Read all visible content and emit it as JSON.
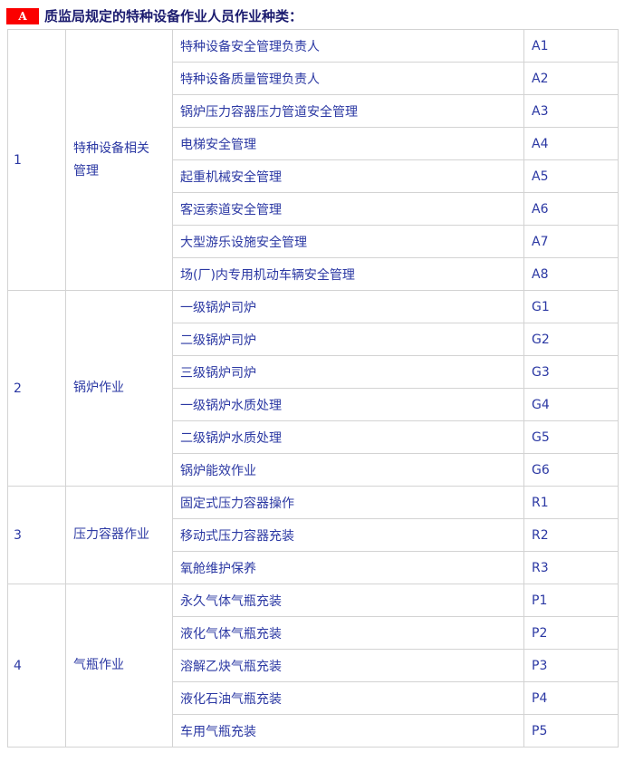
{
  "header": {
    "badge_label": "A",
    "title": "质监局规定的特种设备作业人员作业种类："
  },
  "table": {
    "sections": [
      {
        "num": "1",
        "category": "特种设备相关管理",
        "rows": [
          {
            "job": "特种设备安全管理负责人",
            "code": "A1"
          },
          {
            "job": "特种设备质量管理负责人",
            "code": "A2"
          },
          {
            "job": "锅炉压力容器压力管道安全管理",
            "code": "A3"
          },
          {
            "job": "电梯安全管理",
            "code": "A4"
          },
          {
            "job": "起重机械安全管理",
            "code": "A5"
          },
          {
            "job": "客运索道安全管理",
            "code": "A6"
          },
          {
            "job": "大型游乐设施安全管理",
            "code": "A7"
          },
          {
            "job": "场(厂)内专用机动车辆安全管理",
            "code": "A8"
          }
        ]
      },
      {
        "num": "2",
        "category": "锅炉作业",
        "rows": [
          {
            "job": "一级锅炉司炉",
            "code": "G1"
          },
          {
            "job": "二级锅炉司炉",
            "code": "G2"
          },
          {
            "job": "三级锅炉司炉",
            "code": "G3"
          },
          {
            "job": "一级锅炉水质处理",
            "code": "G4"
          },
          {
            "job": "二级锅炉水质处理",
            "code": "G5"
          },
          {
            "job": "锅炉能效作业",
            "code": "G6"
          }
        ]
      },
      {
        "num": "3",
        "category": "压力容器作业",
        "rows": [
          {
            "job": "固定式压力容器操作",
            "code": "R1"
          },
          {
            "job": "移动式压力容器充装",
            "code": "R2"
          },
          {
            "job": "氧舱维护保养",
            "code": "R3"
          }
        ]
      },
      {
        "num": "4",
        "category": "气瓶作业",
        "rows": [
          {
            "job": "永久气体气瓶充装",
            "code": "P1"
          },
          {
            "job": "液化气体气瓶充装",
            "code": "P2"
          },
          {
            "job": "溶解乙炔气瓶充装",
            "code": "P3"
          },
          {
            "job": "液化石油气瓶充装",
            "code": "P4"
          },
          {
            "job": "车用气瓶充装",
            "code": "P5"
          }
        ]
      }
    ]
  },
  "colors": {
    "badge_bg": "#fb0000",
    "badge_text": "#ffffff",
    "title_text": "#1b1b6f",
    "cell_text": "#2b38a3",
    "border": "#d3d3d3"
  }
}
